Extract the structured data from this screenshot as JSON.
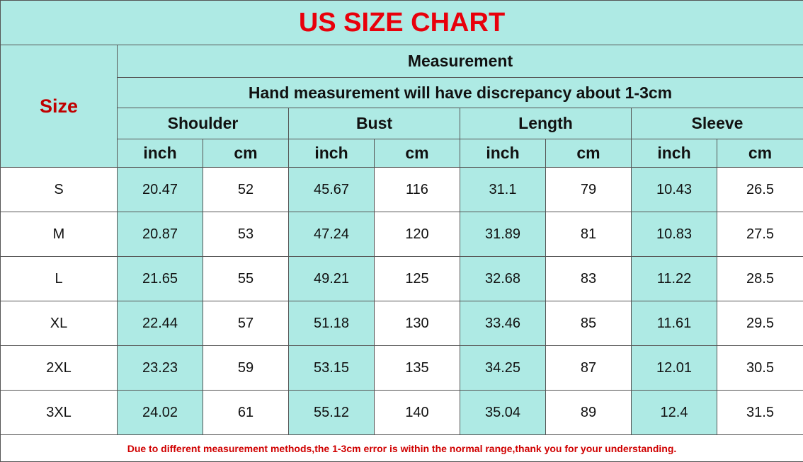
{
  "header": {
    "title": "US SIZE CHART",
    "size_label": "Size",
    "measurement": "Measurement",
    "note": "Hand measurement will have discrepancy about 1-3cm"
  },
  "table": {
    "groups": [
      {
        "name": "Shoulder",
        "units": [
          "inch",
          "cm"
        ]
      },
      {
        "name": "Bust",
        "units": [
          "inch",
          "cm"
        ]
      },
      {
        "name": "Length",
        "units": [
          "inch",
          "cm"
        ]
      },
      {
        "name": "Sleeve",
        "units": [
          "inch",
          "cm"
        ]
      }
    ],
    "rows": [
      {
        "size": "S",
        "values": [
          "20.47",
          "52",
          "45.67",
          "116",
          "31.1",
          "79",
          "10.43",
          "26.5"
        ]
      },
      {
        "size": "M",
        "values": [
          "20.87",
          "53",
          "47.24",
          "120",
          "31.89",
          "81",
          "10.83",
          "27.5"
        ]
      },
      {
        "size": "L",
        "values": [
          "21.65",
          "55",
          "49.21",
          "125",
          "32.68",
          "83",
          "11.22",
          "28.5"
        ]
      },
      {
        "size": "XL",
        "values": [
          "22.44",
          "57",
          "51.18",
          "130",
          "33.46",
          "85",
          "11.61",
          "29.5"
        ]
      },
      {
        "size": "2XL",
        "values": [
          "23.23",
          "59",
          "53.15",
          "135",
          "34.25",
          "87",
          "12.01",
          "30.5"
        ]
      },
      {
        "size": "3XL",
        "values": [
          "24.02",
          "61",
          "55.12",
          "140",
          "35.04",
          "89",
          "12.4",
          "31.5"
        ]
      }
    ]
  },
  "footer": {
    "text": "Due to different measurement methods,the 1-3cm error is within the normal range,thank you for your understanding."
  }
}
